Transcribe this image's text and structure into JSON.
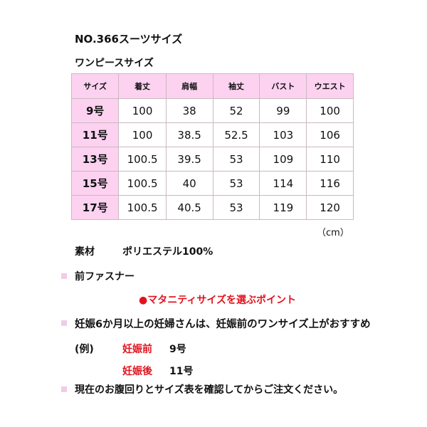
{
  "title": "NO.366スーツサイズ",
  "subtitle": "ワンピースサイズ",
  "table": {
    "headers": [
      "サイズ",
      "着丈",
      "肩幅",
      "袖丈",
      "バスト",
      "ウエスト"
    ],
    "rows": [
      [
        "9号",
        "100",
        "38",
        "52",
        "99",
        "100"
      ],
      [
        "11号",
        "100",
        "38.5",
        "52.5",
        "103",
        "106"
      ],
      [
        "13号",
        "100.5",
        "39.5",
        "53",
        "109",
        "110"
      ],
      [
        "15号",
        "100.5",
        "40",
        "53",
        "114",
        "116"
      ],
      [
        "17号",
        "100.5",
        "40.5",
        "53",
        "119",
        "120"
      ]
    ]
  },
  "unit": "（cm）",
  "material_label": "素材",
  "material_value": "ポリエステル100%",
  "bullet1": "前ファスナー",
  "point_heading": "●マタニティサイズを選ぶポイント",
  "bullet2": "妊娠6か月以上の妊婦さんは、妊娠前のワンサイズ上がおすすめ",
  "example_label": "(例)",
  "before_label": "妊娠前",
  "before_value": "9号",
  "after_label": "妊娠後",
  "after_value": "11号",
  "bullet3": "現在のお腹回りとサイズ表を確認してからご注文ください。",
  "colors": {
    "header_bg": "#fcd2f0",
    "accent_red": "#e0141e",
    "bullet": "#f2cbe8"
  }
}
